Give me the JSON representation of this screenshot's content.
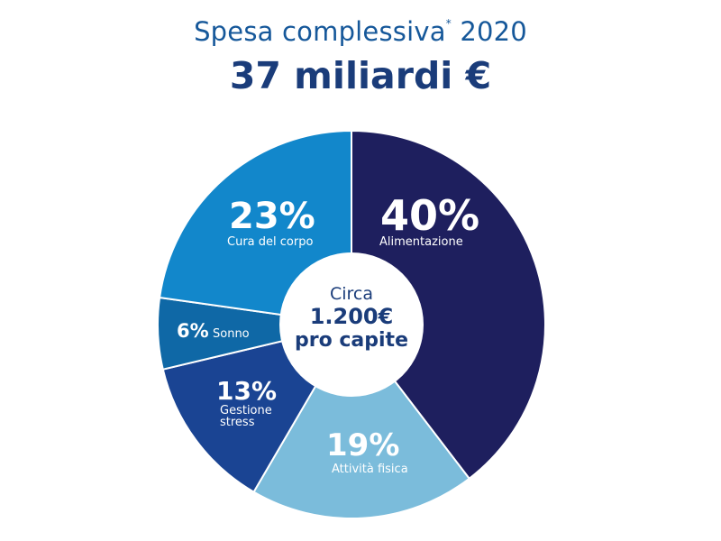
{
  "header": {
    "title_text": "Spesa complessiva",
    "title_marker": "*",
    "title_year": "2020",
    "headline": "37 miliardi €"
  },
  "center": {
    "line1": "Circa",
    "line2": "1.200€",
    "line3": "pro capite"
  },
  "chart_data": {
    "type": "pie",
    "donut": true,
    "slices": [
      {
        "label": "Alimentazione",
        "value": 40,
        "display": "40%",
        "color": "#1e1f5e"
      },
      {
        "label": "Attività fisica",
        "value": 19,
        "display": "19%",
        "color": "#7bbcdb"
      },
      {
        "label": "Gestione stress",
        "value": 13,
        "display": "13%",
        "color": "#1a4493"
      },
      {
        "label": "Sonno",
        "value": 6,
        "display": "6%",
        "color": "#0f68a6"
      },
      {
        "label": "Cura del corpo",
        "value": 23,
        "display": "23%",
        "color": "#1287cb"
      }
    ]
  }
}
